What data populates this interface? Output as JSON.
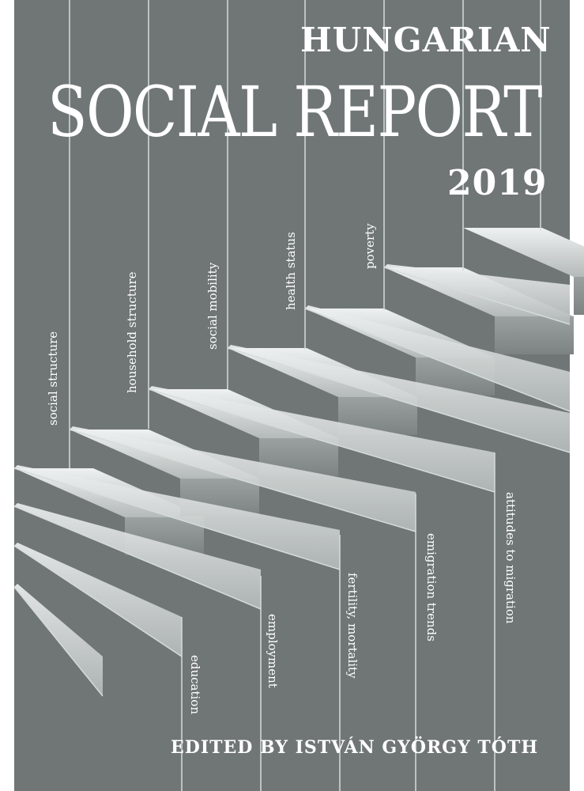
{
  "cover": {
    "title_line1": "HUNGARIAN",
    "title_line2": "SOCIAL REPORT",
    "year": "2019",
    "editor": "EDITED BY ISTVÁN GYÖRGY TÓTH",
    "background_color": "#6f7675",
    "step_face_color": "#c9cfce",
    "line_color": "#d5dbdb"
  },
  "topics_upper": [
    "social structure",
    "household structure",
    "social mobility",
    "health status",
    "poverty"
  ],
  "topics_lower": [
    "education",
    "employment",
    "fertility, mortality",
    "emigration trends",
    "attitudes to migration"
  ]
}
